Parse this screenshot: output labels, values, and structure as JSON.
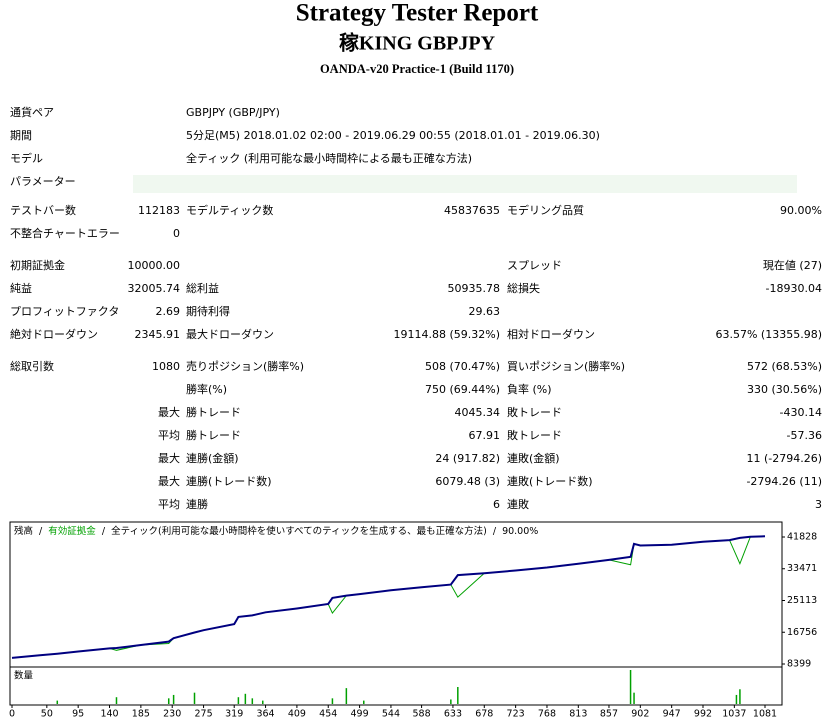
{
  "header": {
    "title": "Strategy Tester Report",
    "subtitle": "稼KING GBPJPY",
    "server": "OANDA-v20 Practice-1 (Build 1170)"
  },
  "info": [
    [
      "通貨ペア",
      "GBPJPY (GBP/JPY)"
    ],
    [
      "期間",
      "5分足(M5) 2018.01.02 02:00 - 2019.06.29 00:55 (2018.01.01 - 2019.06.30)"
    ],
    [
      "モデル",
      "全ティック (利用可能な最小時間枠による最も正確な方法)"
    ]
  ],
  "parameters_label": "パラメーター",
  "stats": [
    [
      [
        "テストバー数",
        "112183",
        "モデルティック数",
        "45837635",
        "モデリング品質",
        "90.00%"
      ],
      [
        "不整合チャートエラー",
        "0",
        null,
        null,
        null,
        null
      ]
    ],
    [
      [
        "初期証拠金",
        "10000.00",
        null,
        null,
        "スプレッド",
        "現在値 (27)"
      ],
      [
        "純益",
        "32005.74",
        "総利益",
        "50935.78",
        "総損失",
        "-18930.04"
      ],
      [
        "プロフィットファクタ",
        "2.69",
        "期待利得",
        "29.63",
        null,
        null
      ],
      [
        "絶対ドローダウン",
        "2345.91",
        "最大ドローダウン",
        "19114.88 (59.32%)",
        "相対ドローダウン",
        "63.57% (13355.98)"
      ]
    ],
    [
      [
        "総取引数",
        "1080",
        "売りポジション(勝率%)",
        "508 (70.47%)",
        "買いポジション(勝率%)",
        "572 (68.53%)"
      ],
      [
        null,
        null,
        "勝率(%)",
        "750 (69.44%)",
        "負率 (%)",
        "330 (30.56%)"
      ],
      [
        null,
        "最大",
        "勝トレード",
        "4045.34",
        "敗トレード",
        "-430.14"
      ],
      [
        null,
        "平均",
        "勝トレード",
        "67.91",
        "敗トレード",
        "-57.36"
      ],
      [
        null,
        "最大",
        "連勝(金額)",
        "24 (917.82)",
        "連敗(金額)",
        "11 (-2794.26)"
      ],
      [
        null,
        "最大",
        "連勝(トレード数)",
        "6079.48 (3)",
        "連敗(トレード数)",
        "-2794.26 (11)"
      ],
      [
        null,
        "平均",
        "連勝",
        "6",
        "連敗",
        "3"
      ]
    ]
  ],
  "chart_data": {
    "type": "line",
    "separator": "/",
    "model_label": "全ティック(利用可能な最小時間枠を使いすべてのティックを生成する、最も正確な方法)",
    "quality_label": "90.00%",
    "x": [
      0,
      40,
      65,
      95,
      140,
      150,
      185,
      225,
      232,
      262,
      275,
      319,
      325,
      345,
      364,
      409,
      454,
      460,
      480,
      499,
      544,
      588,
      630,
      640,
      678,
      723,
      768,
      813,
      857,
      888,
      893,
      902,
      947,
      992,
      1030,
      1045,
      1060,
      1081
    ],
    "series": [
      {
        "name": "残高",
        "color": "#000080",
        "values": [
          10000,
          10700,
          11100,
          11700,
          12500,
          12600,
          13400,
          14300,
          15200,
          16700,
          17300,
          18900,
          20800,
          21200,
          22000,
          23000,
          24200,
          25800,
          26400,
          26800,
          27800,
          28600,
          29300,
          31800,
          32300,
          33000,
          33800,
          34800,
          35800,
          36600,
          40000,
          39600,
          39800,
          40600,
          41000,
          41600,
          41900,
          42006
        ]
      },
      {
        "name": "有効証拠金",
        "color": "#00a000",
        "values": [
          10000,
          10700,
          11100,
          11700,
          12500,
          12000,
          13400,
          13800,
          15200,
          16700,
          17300,
          18900,
          20800,
          21200,
          22000,
          23000,
          24200,
          21800,
          26400,
          26800,
          27800,
          28600,
          29300,
          26000,
          32300,
          33000,
          33800,
          34800,
          35800,
          34500,
          40000,
          39600,
          39800,
          40600,
          41000,
          34800,
          41900,
          42006
        ]
      }
    ],
    "xlim": [
      0,
      1104
    ],
    "ylim": [
      7873,
      45250
    ],
    "xticks": [
      0,
      50,
      95,
      140,
      185,
      230,
      275,
      319,
      364,
      409,
      454,
      499,
      544,
      588,
      633,
      678,
      723,
      768,
      813,
      857,
      902,
      947,
      992,
      1037,
      1081
    ],
    "yticks": [
      8399,
      16756,
      25113,
      33471,
      41828
    ],
    "volume": {
      "label": "数量",
      "color": "#00a000",
      "x": [
        65,
        150,
        225,
        232,
        262,
        325,
        335,
        345,
        360,
        460,
        480,
        505,
        630,
        640,
        888,
        893,
        1040,
        1045
      ],
      "values": [
        3,
        6,
        5,
        8,
        10,
        6,
        9,
        5,
        3,
        5,
        14,
        3,
        4,
        15,
        30,
        10,
        8,
        13
      ]
    }
  }
}
